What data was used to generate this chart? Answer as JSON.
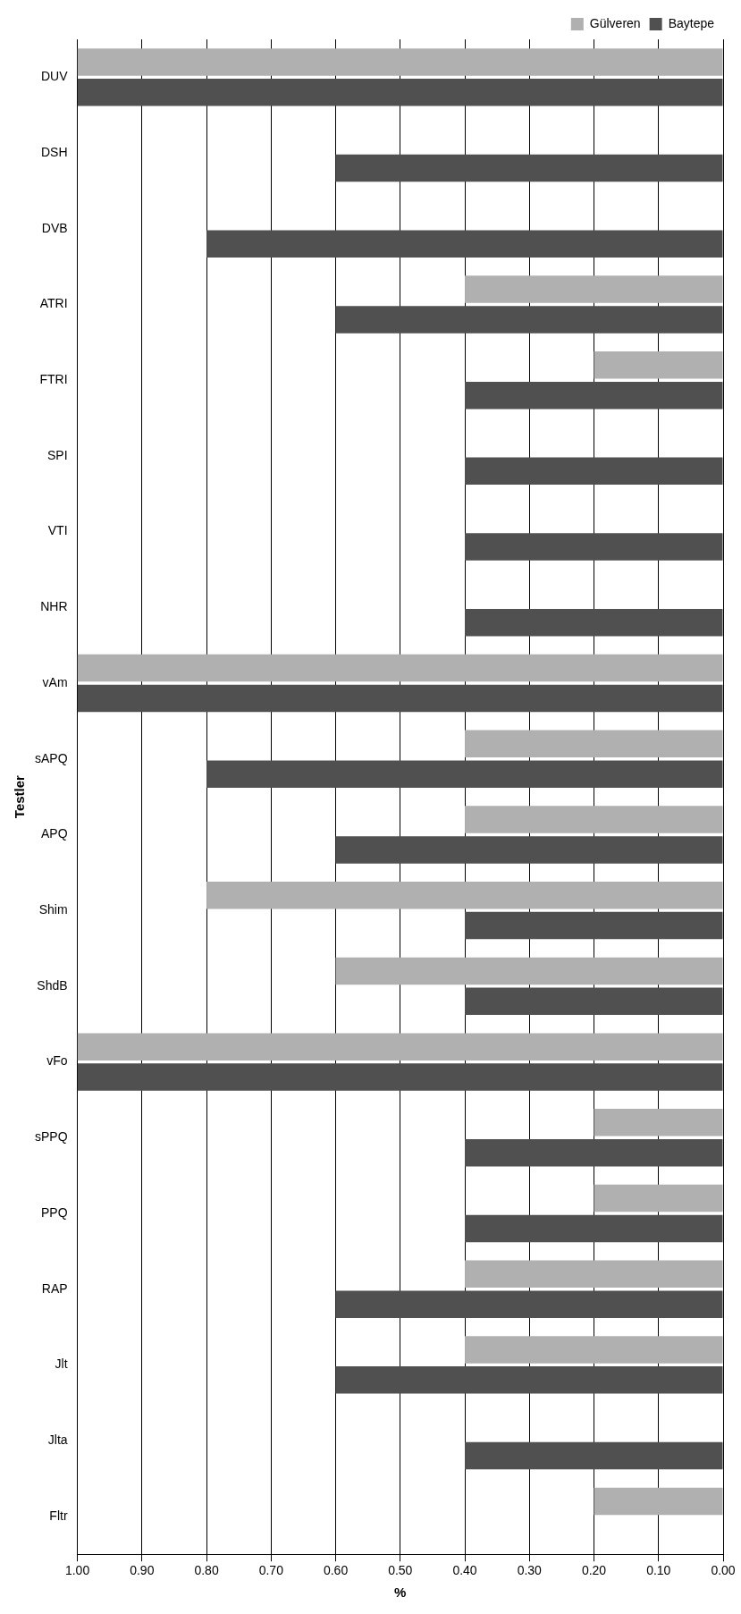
{
  "chart_data": {
    "type": "bar",
    "orientation": "horizontal",
    "xlabel": "%",
    "ylabel": "Testler",
    "categories": [
      "DUV",
      "DSH",
      "DVB",
      "ATRI",
      "FTRI",
      "SPI",
      "VTI",
      "NHR",
      "vAm",
      "sAPQ",
      "APQ",
      "Shim",
      "ShdB",
      "vFo",
      "sPPQ",
      "PPQ",
      "RAP",
      "Jlt",
      "Jlta",
      "Fltr"
    ],
    "series": [
      {
        "name": "Gülveren",
        "color": "#b0b0b0",
        "values": [
          1.0,
          0,
          0,
          0.4,
          0.2,
          0,
          0,
          0,
          1.0,
          0.4,
          0.4,
          0.8,
          0.6,
          1.0,
          0.2,
          0.2,
          0.4,
          0.4,
          0,
          0.2
        ]
      },
      {
        "name": "Baytepe",
        "color": "#505050",
        "values": [
          1.0,
          0.6,
          0.8,
          0.6,
          0.4,
          0.4,
          0.4,
          0.4,
          1.0,
          0.8,
          0.6,
          0.4,
          0.4,
          1.0,
          0.4,
          0.4,
          0.6,
          0.6,
          0.4,
          0
        ]
      }
    ],
    "xlim": [
      1.0,
      0
    ],
    "xticks": [
      {
        "value": 1.0,
        "label": "1.00"
      },
      {
        "value": 0.9,
        "label": "0.90"
      },
      {
        "value": 0.8,
        "label": "0.80"
      },
      {
        "value": 0.7,
        "label": "0.70"
      },
      {
        "value": 0.6,
        "label": "0.60"
      },
      {
        "value": 0.5,
        "label": "0.50"
      },
      {
        "value": 0.4,
        "label": "0.40"
      },
      {
        "value": 0.3,
        "label": "0.30"
      },
      {
        "value": 0.2,
        "label": "0.20"
      },
      {
        "value": 0.1,
        "label": "0.10"
      },
      {
        "value": 0,
        "label": "0.00"
      }
    ],
    "grid": "x",
    "legend": "top right"
  }
}
